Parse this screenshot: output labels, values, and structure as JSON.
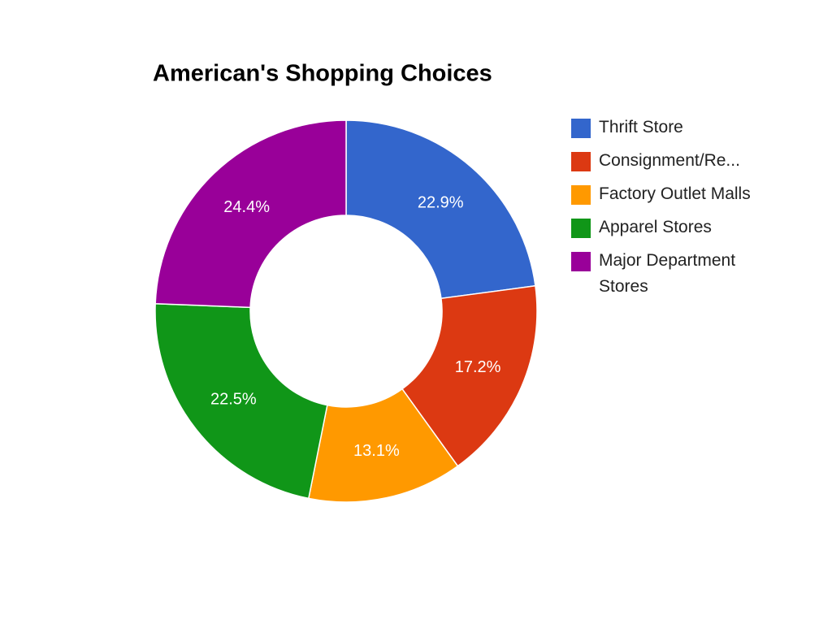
{
  "chart_data": {
    "type": "pie",
    "title": "American's Shopping Choices",
    "categories": [
      "Thrift Store",
      "Consignment/Re...",
      "Factory Outlet Malls",
      "Apparel Stores",
      "Major Department Stores"
    ],
    "values": [
      22.9,
      17.2,
      13.1,
      22.5,
      24.4
    ],
    "value_labels": [
      "22.9%",
      "17.2%",
      "13.1%",
      "22.5%",
      "24.4%"
    ],
    "colors": [
      "#3366cc",
      "#dc3912",
      "#ff9900",
      "#109618",
      "#990099"
    ],
    "donut": true,
    "legend": "right"
  }
}
